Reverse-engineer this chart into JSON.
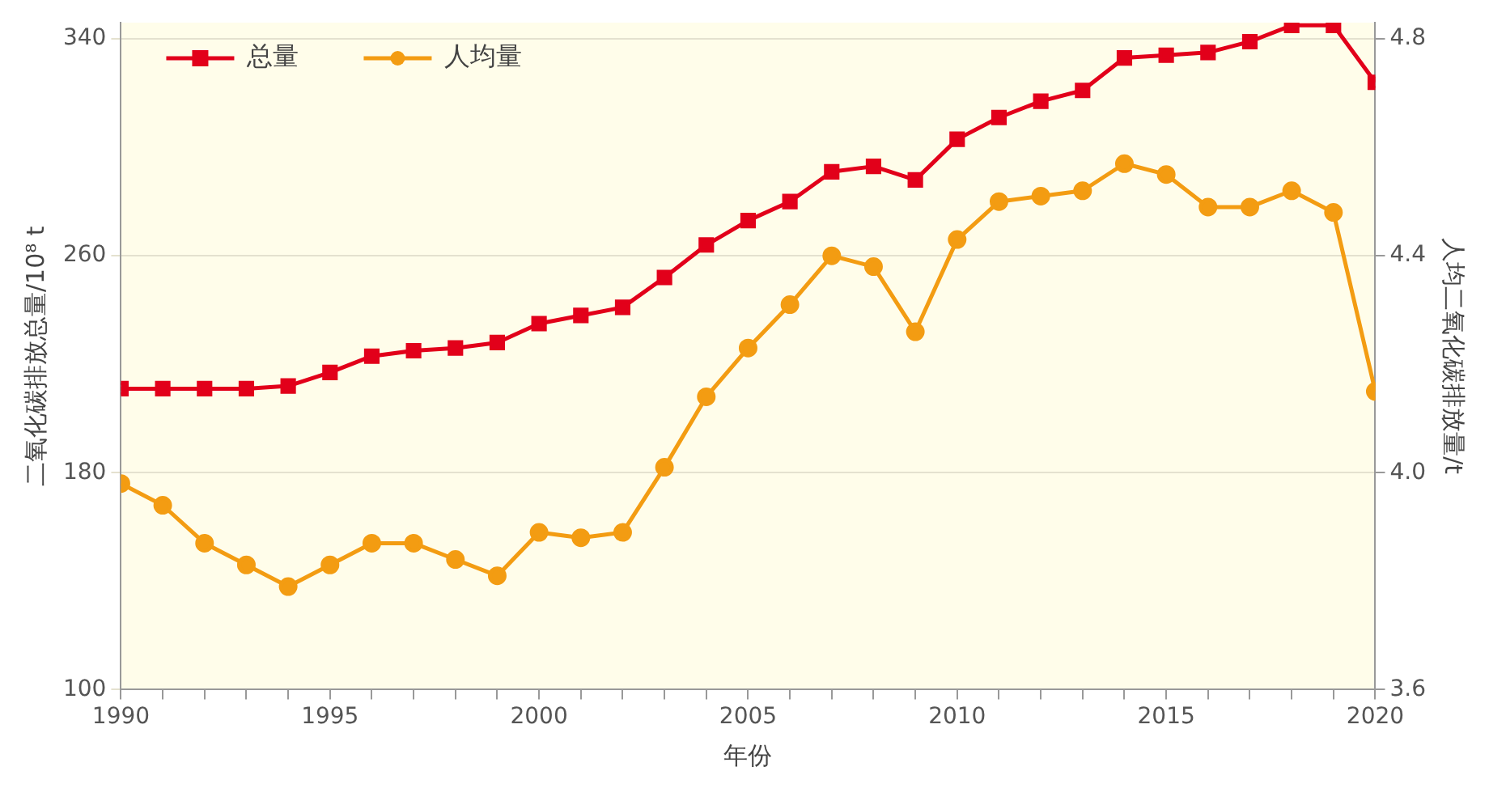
{
  "chart_data": {
    "type": "line",
    "xlabel": "年份",
    "ylabel": "二氧化碳排放总量/10⁸ t",
    "y2label": "人均二氧化碳排放量/t",
    "x": [
      1990,
      1991,
      1992,
      1993,
      1994,
      1995,
      1996,
      1997,
      1998,
      1999,
      2000,
      2001,
      2002,
      2003,
      2004,
      2005,
      2006,
      2007,
      2008,
      2009,
      2010,
      2011,
      2012,
      2013,
      2014,
      2015,
      2016,
      2017,
      2018,
      2019,
      2020
    ],
    "series": [
      {
        "name": "总量",
        "color": "#e2001a",
        "marker": "square",
        "values": [
          211,
          211,
          211,
          211,
          212,
          217,
          223,
          225,
          226,
          228,
          235,
          238,
          241,
          252,
          264,
          273,
          280,
          291,
          293,
          288,
          303,
          311,
          317,
          321,
          333,
          334,
          335,
          339,
          345,
          345,
          324
        ]
      },
      {
        "name": "人均量",
        "color": "#f39c12",
        "marker": "circle",
        "axis": "y2",
        "values": [
          3.98,
          3.94,
          3.87,
          3.83,
          3.79,
          3.83,
          3.87,
          3.87,
          3.84,
          3.81,
          3.89,
          3.88,
          3.89,
          4.01,
          4.14,
          4.23,
          4.31,
          4.4,
          4.38,
          4.26,
          4.43,
          4.5,
          4.51,
          4.52,
          4.57,
          4.55,
          4.49,
          4.49,
          4.52,
          4.48,
          4.15
        ]
      }
    ],
    "xlim": [
      1990,
      2020
    ],
    "xticks": [
      1990,
      {
        "value": 1991,
        "label": null
      },
      {
        "value": 1992,
        "label": null
      },
      {
        "value": 1993,
        "label": null
      },
      {
        "value": 1994,
        "label": null
      },
      1995,
      {
        "value": 1996,
        "label": null
      },
      {
        "value": 1997,
        "label": null
      },
      {
        "value": 1998,
        "label": null
      },
      {
        "value": 1999,
        "label": null
      },
      2000,
      {
        "value": 2001,
        "label": null
      },
      {
        "value": 2002,
        "label": null
      },
      {
        "value": 2003,
        "label": null
      },
      {
        "value": 2004,
        "label": null
      },
      2005,
      {
        "value": 2006,
        "label": null
      },
      {
        "value": 2007,
        "label": null
      },
      {
        "value": 2008,
        "label": null
      },
      {
        "value": 2009,
        "label": null
      },
      2010,
      {
        "value": 2011,
        "label": null
      },
      {
        "value": 2012,
        "label": null
      },
      {
        "value": 2013,
        "label": null
      },
      {
        "value": 2014,
        "label": null
      },
      2015,
      {
        "value": 2016,
        "label": null
      },
      {
        "value": 2017,
        "label": null
      },
      {
        "value": 2018,
        "label": null
      },
      {
        "value": 2019,
        "label": null
      },
      2020
    ],
    "ylim": [
      100,
      346
    ],
    "yticks": [
      100,
      180,
      260,
      340
    ],
    "y2lim": [
      3.6,
      4.83
    ],
    "y2ticks": [
      3.6,
      {
        "value": 4,
        "label": "4.0"
      },
      4.4,
      4.8
    ],
    "grid": "y",
    "legend": "top left",
    "line_style": "solid"
  }
}
